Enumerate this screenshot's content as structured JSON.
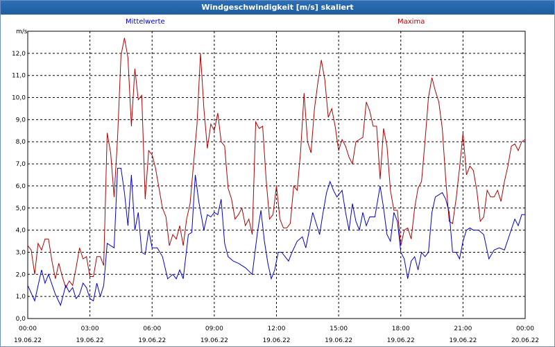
{
  "window": {
    "title": "Windgeschwindigkeit [m/s] skaliert"
  },
  "legend": [
    {
      "name": "Mittelwerte",
      "color": "#0000cc"
    },
    {
      "name": "Maxima",
      "color": "#b00000"
    }
  ],
  "chart_data": {
    "type": "line",
    "title": "Windgeschwindigkeit [m/s] skaliert",
    "ylabel": "m/s",
    "ylim": [
      0,
      13
    ],
    "xlim": [
      "2022-06-19 00:00",
      "2022-06-20 00:00"
    ],
    "y_ticks": [
      "0,0",
      "1,0",
      "2,0",
      "3,0",
      "4,0",
      "5,0",
      "6,0",
      "7,0",
      "8,0",
      "9,0",
      "10,0",
      "11,0",
      "12,0"
    ],
    "x_ticks": [
      {
        "time": "00:00",
        "date": "19.06.22"
      },
      {
        "time": "03:00",
        "date": "19.06.22"
      },
      {
        "time": "06:00",
        "date": "19.06.22"
      },
      {
        "time": "09:00",
        "date": "19.06.22"
      },
      {
        "time": "12:00",
        "date": "19.06.22"
      },
      {
        "time": "15:00",
        "date": "19.06.22"
      },
      {
        "time": "18:00",
        "date": "19.06.22"
      },
      {
        "time": "21:00",
        "date": "19.06.22"
      },
      {
        "time": "00:00",
        "date": "20.06.22"
      }
    ],
    "grid": true,
    "series": [
      {
        "name": "Mittelwerte",
        "color": "#0000cc",
        "points": [
          [
            "00:00",
            1.5
          ],
          [
            "00:20",
            0.8
          ],
          [
            "00:40",
            2.2
          ],
          [
            "00:50",
            1.6
          ],
          [
            "01:00",
            2.0
          ],
          [
            "01:20",
            1.1
          ],
          [
            "01:35",
            0.6
          ],
          [
            "01:50",
            1.5
          ],
          [
            "02:00",
            1.2
          ],
          [
            "02:10",
            1.4
          ],
          [
            "02:20",
            0.9
          ],
          [
            "02:30",
            1.1
          ],
          [
            "02:40",
            1.6
          ],
          [
            "02:50",
            1.4
          ],
          [
            "03:00",
            0.9
          ],
          [
            "03:10",
            0.8
          ],
          [
            "03:20",
            1.6
          ],
          [
            "03:30",
            1.0
          ],
          [
            "03:40",
            1.5
          ],
          [
            "03:50",
            3.4
          ],
          [
            "04:00",
            3.3
          ],
          [
            "04:10",
            3.2
          ],
          [
            "04:20",
            6.8
          ],
          [
            "04:30",
            6.8
          ],
          [
            "04:40",
            5.7
          ],
          [
            "04:50",
            4.2
          ],
          [
            "05:00",
            6.5
          ],
          [
            "05:10",
            4.0
          ],
          [
            "05:20",
            4.8
          ],
          [
            "05:30",
            3.0
          ],
          [
            "05:40",
            2.9
          ],
          [
            "05:50",
            4.0
          ],
          [
            "06:00",
            3.2
          ],
          [
            "06:15",
            3.2
          ],
          [
            "06:30",
            2.8
          ],
          [
            "06:45",
            1.8
          ],
          [
            "07:00",
            2.0
          ],
          [
            "07:10",
            1.8
          ],
          [
            "07:20",
            2.2
          ],
          [
            "07:30",
            1.8
          ],
          [
            "07:45",
            3.8
          ],
          [
            "07:55",
            3.9
          ],
          [
            "08:05",
            6.5
          ],
          [
            "08:15",
            5.3
          ],
          [
            "08:30",
            4.0
          ],
          [
            "08:40",
            4.7
          ],
          [
            "08:50",
            4.6
          ],
          [
            "09:00",
            4.8
          ],
          [
            "09:10",
            4.7
          ],
          [
            "09:20",
            5.4
          ],
          [
            "09:30",
            3.4
          ],
          [
            "09:40",
            2.8
          ],
          [
            "09:55",
            2.6
          ],
          [
            "10:10",
            2.5
          ],
          [
            "10:30",
            2.3
          ],
          [
            "10:50",
            2.0
          ],
          [
            "11:05",
            3.9
          ],
          [
            "11:15",
            4.9
          ],
          [
            "11:25",
            3.5
          ],
          [
            "11:35",
            2.5
          ],
          [
            "11:45",
            1.8
          ],
          [
            "11:55",
            2.2
          ],
          [
            "12:05",
            3.0
          ],
          [
            "12:15",
            3.0
          ],
          [
            "12:25",
            2.8
          ],
          [
            "12:35",
            2.6
          ],
          [
            "12:45",
            3.0
          ],
          [
            "13:00",
            3.5
          ],
          [
            "13:15",
            3.7
          ],
          [
            "13:25",
            3.2
          ],
          [
            "13:35",
            4.0
          ],
          [
            "13:45",
            4.8
          ],
          [
            "13:55",
            4.3
          ],
          [
            "14:05",
            3.8
          ],
          [
            "14:15",
            4.8
          ],
          [
            "14:25",
            5.7
          ],
          [
            "14:35",
            6.2
          ],
          [
            "14:45",
            5.8
          ],
          [
            "14:55",
            5.5
          ],
          [
            "15:10",
            5.8
          ],
          [
            "15:20",
            4.8
          ],
          [
            "15:30",
            4.0
          ],
          [
            "15:40",
            5.2
          ],
          [
            "15:50",
            4.4
          ],
          [
            "16:00",
            4.0
          ],
          [
            "16:10",
            4.8
          ],
          [
            "16:20",
            4.2
          ],
          [
            "16:30",
            4.6
          ],
          [
            "16:45",
            4.6
          ],
          [
            "17:00",
            6.0
          ],
          [
            "17:10",
            5.0
          ],
          [
            "17:20",
            3.8
          ],
          [
            "17:30",
            3.5
          ],
          [
            "17:40",
            4.8
          ],
          [
            "17:50",
            4.4
          ],
          [
            "18:00",
            3.0
          ],
          [
            "18:10",
            2.7
          ],
          [
            "18:20",
            1.8
          ],
          [
            "18:30",
            2.6
          ],
          [
            "18:40",
            2.8
          ],
          [
            "18:50",
            2.2
          ],
          [
            "19:00",
            3.0
          ],
          [
            "19:10",
            2.8
          ],
          [
            "19:20",
            3.0
          ],
          [
            "19:30",
            4.8
          ],
          [
            "19:40",
            5.5
          ],
          [
            "19:50",
            5.6
          ],
          [
            "20:00",
            5.7
          ],
          [
            "20:10",
            5.4
          ],
          [
            "20:20",
            4.8
          ],
          [
            "20:30",
            3.0
          ],
          [
            "20:40",
            3.0
          ],
          [
            "20:50",
            2.7
          ],
          [
            "21:00",
            3.5
          ],
          [
            "21:10",
            4.0
          ],
          [
            "21:20",
            4.1
          ],
          [
            "21:30",
            4.0
          ],
          [
            "21:45",
            4.0
          ],
          [
            "22:00",
            3.8
          ],
          [
            "22:15",
            2.7
          ],
          [
            "22:30",
            3.1
          ],
          [
            "22:45",
            3.2
          ],
          [
            "23:00",
            3.1
          ],
          [
            "23:15",
            3.8
          ],
          [
            "23:30",
            4.5
          ],
          [
            "23:40",
            4.2
          ],
          [
            "23:50",
            4.7
          ],
          [
            "24:00",
            4.7
          ]
        ]
      },
      {
        "name": "Maxima",
        "color": "#b00000",
        "points": [
          [
            "00:00",
            3.3
          ],
          [
            "00:10",
            3.1
          ],
          [
            "00:20",
            2.0
          ],
          [
            "00:30",
            3.4
          ],
          [
            "00:40",
            3.1
          ],
          [
            "00:50",
            3.6
          ],
          [
            "01:00",
            3.6
          ],
          [
            "01:10",
            2.6
          ],
          [
            "01:20",
            1.8
          ],
          [
            "01:30",
            2.5
          ],
          [
            "01:40",
            1.9
          ],
          [
            "01:50",
            1.4
          ],
          [
            "02:00",
            1.7
          ],
          [
            "02:10",
            1.5
          ],
          [
            "02:20",
            2.3
          ],
          [
            "02:30",
            3.2
          ],
          [
            "02:40",
            2.7
          ],
          [
            "02:50",
            2.8
          ],
          [
            "03:00",
            1.9
          ],
          [
            "03:10",
            1.9
          ],
          [
            "03:20",
            2.8
          ],
          [
            "03:30",
            2.8
          ],
          [
            "03:40",
            2.4
          ],
          [
            "03:50",
            8.4
          ],
          [
            "04:00",
            7.5
          ],
          [
            "04:10",
            5.5
          ],
          [
            "04:20",
            8.2
          ],
          [
            "04:30",
            11.9
          ],
          [
            "04:40",
            12.7
          ],
          [
            "04:50",
            11.8
          ],
          [
            "05:00",
            8.7
          ],
          [
            "05:10",
            11.3
          ],
          [
            "05:20",
            9.9
          ],
          [
            "05:30",
            10.1
          ],
          [
            "05:40",
            5.4
          ],
          [
            "05:50",
            7.6
          ],
          [
            "06:00",
            7.4
          ],
          [
            "06:10",
            6.8
          ],
          [
            "06:20",
            5.9
          ],
          [
            "06:30",
            5.0
          ],
          [
            "06:40",
            4.6
          ],
          [
            "06:50",
            3.3
          ],
          [
            "07:00",
            3.8
          ],
          [
            "07:10",
            3.6
          ],
          [
            "07:20",
            4.2
          ],
          [
            "07:30",
            3.3
          ],
          [
            "07:40",
            4.5
          ],
          [
            "07:50",
            5.2
          ],
          [
            "08:00",
            7.0
          ],
          [
            "08:10",
            8.8
          ],
          [
            "08:20",
            12.0
          ],
          [
            "08:30",
            9.5
          ],
          [
            "08:40",
            7.7
          ],
          [
            "08:50",
            8.8
          ],
          [
            "09:00",
            8.5
          ],
          [
            "09:10",
            9.3
          ],
          [
            "09:20",
            8.0
          ],
          [
            "09:30",
            7.8
          ],
          [
            "09:40",
            5.9
          ],
          [
            "09:50",
            5.4
          ],
          [
            "10:00",
            4.5
          ],
          [
            "10:10",
            4.7
          ],
          [
            "10:20",
            5.0
          ],
          [
            "10:30",
            4.2
          ],
          [
            "10:40",
            4.5
          ],
          [
            "10:50",
            3.8
          ],
          [
            "11:00",
            8.9
          ],
          [
            "11:10",
            8.6
          ],
          [
            "11:20",
            8.7
          ],
          [
            "11:30",
            6.3
          ],
          [
            "11:40",
            4.5
          ],
          [
            "11:50",
            4.7
          ],
          [
            "12:00",
            6.0
          ],
          [
            "12:10",
            4.5
          ],
          [
            "12:20",
            4.1
          ],
          [
            "12:30",
            4.1
          ],
          [
            "12:40",
            4.3
          ],
          [
            "12:50",
            6.0
          ],
          [
            "13:00",
            5.8
          ],
          [
            "13:10",
            7.6
          ],
          [
            "13:20",
            10.2
          ],
          [
            "13:30",
            8.0
          ],
          [
            "13:40",
            7.5
          ],
          [
            "13:50",
            9.5
          ],
          [
            "14:00",
            10.7
          ],
          [
            "14:10",
            11.7
          ],
          [
            "14:20",
            10.8
          ],
          [
            "14:30",
            9.1
          ],
          [
            "14:40",
            9.5
          ],
          [
            "14:50",
            8.7
          ],
          [
            "15:00",
            7.6
          ],
          [
            "15:10",
            8.1
          ],
          [
            "15:20",
            7.8
          ],
          [
            "15:30",
            7.3
          ],
          [
            "15:40",
            7.0
          ],
          [
            "15:50",
            8.0
          ],
          [
            "16:00",
            8.1
          ],
          [
            "16:10",
            8.2
          ],
          [
            "16:20",
            9.8
          ],
          [
            "16:30",
            9.4
          ],
          [
            "16:40",
            8.7
          ],
          [
            "16:50",
            8.7
          ],
          [
            "17:00",
            6.3
          ],
          [
            "17:10",
            8.6
          ],
          [
            "17:20",
            7.8
          ],
          [
            "17:30",
            5.8
          ],
          [
            "17:40",
            4.9
          ],
          [
            "17:50",
            4.9
          ],
          [
            "18:00",
            3.3
          ],
          [
            "18:10",
            4.0
          ],
          [
            "18:20",
            4.1
          ],
          [
            "18:30",
            3.6
          ],
          [
            "18:40",
            5.0
          ],
          [
            "18:50",
            5.9
          ],
          [
            "19:00",
            6.2
          ],
          [
            "19:10",
            8.0
          ],
          [
            "19:20",
            10.0
          ],
          [
            "19:30",
            10.9
          ],
          [
            "19:40",
            10.3
          ],
          [
            "19:50",
            9.8
          ],
          [
            "20:00",
            8.6
          ],
          [
            "20:10",
            6.3
          ],
          [
            "20:20",
            4.4
          ],
          [
            "20:30",
            4.3
          ],
          [
            "20:40",
            5.4
          ],
          [
            "20:50",
            6.8
          ],
          [
            "21:00",
            8.4
          ],
          [
            "21:10",
            6.5
          ],
          [
            "21:20",
            6.9
          ],
          [
            "21:30",
            6.7
          ],
          [
            "21:40",
            5.8
          ],
          [
            "21:50",
            4.4
          ],
          [
            "22:00",
            4.6
          ],
          [
            "22:10",
            5.8
          ],
          [
            "22:20",
            5.5
          ],
          [
            "22:30",
            5.5
          ],
          [
            "22:40",
            5.8
          ],
          [
            "22:50",
            5.3
          ],
          [
            "23:00",
            6.2
          ],
          [
            "23:10",
            6.9
          ],
          [
            "23:20",
            7.8
          ],
          [
            "23:30",
            7.9
          ],
          [
            "23:40",
            7.6
          ],
          [
            "23:50",
            8.0
          ],
          [
            "24:00",
            8.1
          ]
        ]
      }
    ]
  }
}
